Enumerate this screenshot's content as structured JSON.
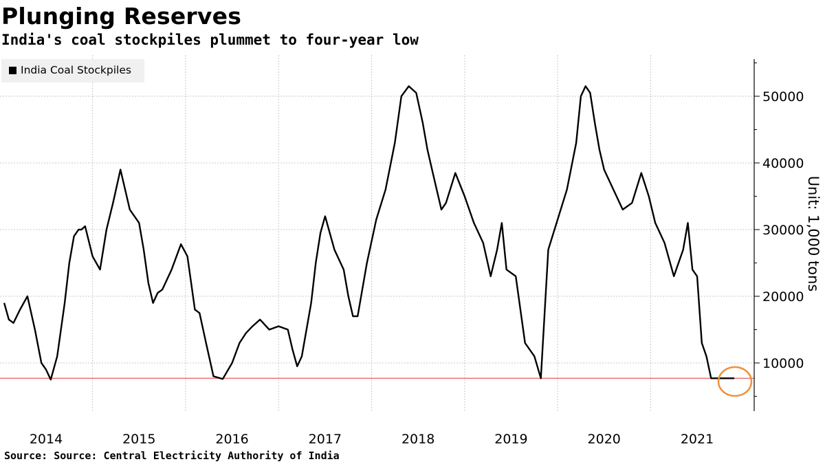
{
  "title": "Plunging Reserves",
  "subtitle": "India's coal stockpiles plummet to four-year low",
  "source": "Source: Source: Central Electricity Authority of India",
  "legend": {
    "label": "India Coal Stockpiles"
  },
  "unit_label": "Unit: 1,000 tons",
  "colors": {
    "line": "#000000",
    "reference_line": "#e0303a",
    "highlight_circle": "#f0913a",
    "grid": "#c8c8c8",
    "legend_bg": "#f0f0f0"
  },
  "chart_data": {
    "type": "line",
    "title": "Plunging Reserves",
    "subtitle": "India's coal stockpiles plummet to four-year low",
    "ylabel": "Unit: 1,000 tons",
    "y_axis_side": "right",
    "ylim": [
      3000,
      56000
    ],
    "xlim": [
      2013.55,
      2021.55
    ],
    "y_ticks": [
      10000,
      20000,
      30000,
      40000,
      50000
    ],
    "y_tick_labels": [
      "10000",
      "20000",
      "30000",
      "40000",
      "50000"
    ],
    "x_tick_labels": [
      "2014",
      "2015",
      "2016",
      "2017",
      "2018",
      "2019",
      "2020",
      "2021"
    ],
    "grid": true,
    "legend_position": "top-left",
    "reference_line": 7700,
    "highlight": {
      "x": 2021.4,
      "y": 7700,
      "shape": "circle"
    },
    "series": [
      {
        "name": "India Coal Stockpiles",
        "x": [
          2013.55,
          2013.6,
          2013.65,
          2013.72,
          2013.8,
          2013.88,
          2013.95,
          2014.0,
          2014.05,
          2014.12,
          2014.2,
          2014.25,
          2014.3,
          2014.35,
          2014.38,
          2014.42,
          2014.5,
          2014.58,
          2014.65,
          2014.72,
          2014.8,
          2014.9,
          2015.0,
          2015.05,
          2015.1,
          2015.15,
          2015.2,
          2015.25,
          2015.35,
          2015.45,
          2015.52,
          2015.6,
          2015.65,
          2015.72,
          2015.8,
          2015.9,
          2016.0,
          2016.08,
          2016.15,
          2016.22,
          2016.3,
          2016.4,
          2016.5,
          2016.6,
          2016.65,
          2016.7,
          2016.75,
          2016.8,
          2016.85,
          2016.9,
          2016.95,
          2017.0,
          2017.1,
          2017.2,
          2017.25,
          2017.3,
          2017.35,
          2017.45,
          2017.55,
          2017.65,
          2017.75,
          2017.82,
          2017.9,
          2017.98,
          2018.05,
          2018.1,
          2018.15,
          2018.2,
          2018.25,
          2018.3,
          2018.4,
          2018.5,
          2018.6,
          2018.7,
          2018.78,
          2018.85,
          2018.9,
          2018.95,
          2019.05,
          2019.15,
          2019.25,
          2019.32,
          2019.4,
          2019.5,
          2019.6,
          2019.7,
          2019.75,
          2019.8,
          2019.85,
          2019.9,
          2019.95,
          2020.0,
          2020.1,
          2020.2,
          2020.3,
          2020.4,
          2020.48,
          2020.55,
          2020.65,
          2020.75,
          2020.85,
          2020.9,
          2020.95,
          2021.0,
          2021.05,
          2021.1,
          2021.15,
          2021.2,
          2021.25,
          2021.3,
          2021.35,
          2021.4
        ],
        "y": [
          19000,
          16500,
          16000,
          18000,
          20000,
          15000,
          10000,
          9000,
          7500,
          11000,
          19000,
          25000,
          29000,
          30000,
          30000,
          30500,
          26000,
          24000,
          30000,
          34000,
          39000,
          33000,
          31000,
          27000,
          22000,
          19000,
          20500,
          21000,
          24000,
          27800,
          26000,
          18000,
          17500,
          13000,
          8000,
          7600,
          10000,
          13000,
          14500,
          15500,
          16500,
          15000,
          15500,
          15000,
          12000,
          9500,
          11000,
          15000,
          19000,
          25000,
          29500,
          32000,
          27000,
          24000,
          20000,
          17000,
          17000,
          25000,
          31500,
          36000,
          43000,
          50000,
          51500,
          50500,
          46000,
          42000,
          39000,
          36000,
          33000,
          34000,
          38500,
          35000,
          31000,
          28000,
          23000,
          27000,
          31000,
          24000,
          23000,
          13000,
          11000,
          7700,
          27000,
          31500,
          36000,
          43000,
          50000,
          51500,
          50500,
          46000,
          42000,
          39000,
          36000,
          33000,
          34000,
          38500,
          35000,
          31000,
          28000,
          23000,
          27000,
          31000,
          24000,
          23000,
          13000,
          11000,
          7700,
          7700,
          7700,
          7700,
          7700,
          7700
        ]
      }
    ]
  }
}
